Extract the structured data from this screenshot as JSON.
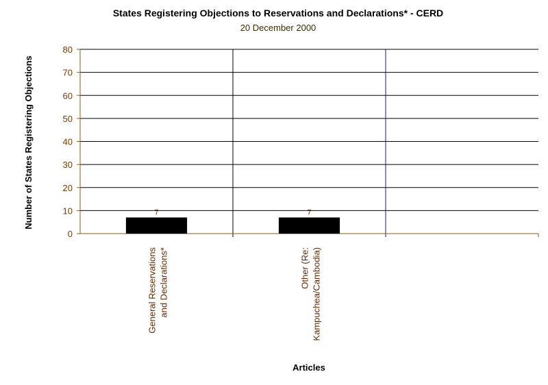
{
  "chart_data": {
    "type": "bar",
    "title": "States Registering Objections to Reservations and Declarations* - CERD",
    "subtitle": "20 December 2000",
    "xlabel": "Articles",
    "ylabel": "Number of States Registering Objections",
    "ylim": [
      0,
      80
    ],
    "yticks": [
      0,
      10,
      20,
      30,
      40,
      50,
      60,
      70,
      80
    ],
    "categories": [
      [
        "General Reservations",
        "and Declarations*"
      ],
      [
        "Other (Re:",
        "Kampuchea/Cambodia)"
      ],
      [
        ""
      ]
    ],
    "values": [
      7,
      7,
      null
    ],
    "data_labels": [
      "7",
      "7",
      ""
    ],
    "grid": true,
    "legend": "none",
    "colors": {
      "bar": "#000000",
      "grid": "#000000",
      "tick_text": "#7a3a00",
      "category_text": "#6b2a00",
      "axis": "#8a5a1a"
    }
  }
}
